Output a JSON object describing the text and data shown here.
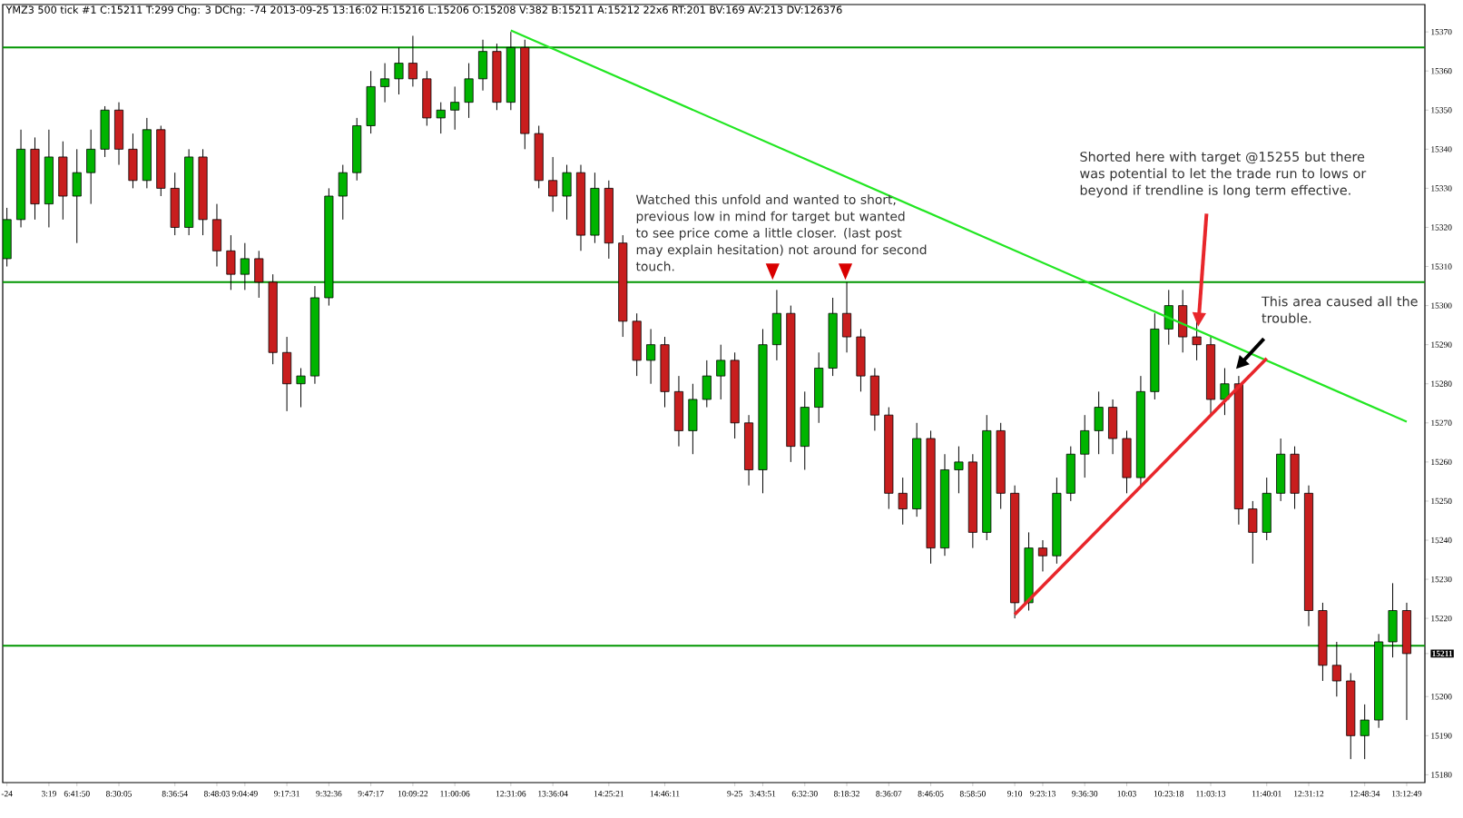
{
  "chart_data": {
    "type": "candlestick",
    "title": "YMZ3  500 tick  #1 C:15211 T:299 Chg: 3 DChg: -74 2013-09-25 13:16:02 H:15216 L:15206 O:15208 V:382 B:15211 A:15212 22x6 RT:201 BV:169 AV:213 DV:126376",
    "categories": [
      "-24",
      null,
      null,
      "3:19",
      null,
      "6:41:50",
      null,
      null,
      "8:30:05",
      null,
      null,
      null,
      "8:36:54",
      null,
      null,
      "8:48:03",
      null,
      "9:04:49",
      null,
      null,
      "9:17:31",
      null,
      null,
      "9:32:36",
      null,
      null,
      "9:47:17",
      null,
      null,
      "10:09:22",
      null,
      null,
      "11:00:06",
      null,
      null,
      null,
      "12:31:06",
      null,
      null,
      "13:36:04",
      null,
      null,
      null,
      "14:25:21",
      null,
      null,
      null,
      "14:46:11",
      null,
      null,
      null,
      null,
      "9-25",
      null,
      "3:43:51",
      null,
      null,
      "6:32:30",
      null,
      null,
      "8:18:32",
      null,
      null,
      "8:36:07",
      null,
      null,
      "8:46:05",
      null,
      null,
      "8:58:50",
      null,
      null,
      "9:10",
      null,
      "9:23:13",
      null,
      null,
      "9:36:30",
      null,
      null,
      "10:03",
      null,
      null,
      "10:23:18",
      null,
      null,
      "11:03:13",
      null,
      null,
      null,
      "11:40:01",
      null,
      null,
      "12:31:12",
      null,
      null,
      null,
      "12:48:34",
      null,
      null,
      "13:12:49"
    ],
    "ohlc": [
      [
        15312,
        15325,
        15310,
        15322
      ],
      [
        15322,
        15345,
        15320,
        15340
      ],
      [
        15340,
        15343,
        15322,
        15326
      ],
      [
        15326,
        15345,
        15320,
        15338
      ],
      [
        15338,
        15342,
        15322,
        15328
      ],
      [
        15328,
        15340,
        15316,
        15334
      ],
      [
        15334,
        15345,
        15326,
        15340
      ],
      [
        15340,
        15351,
        15338,
        15350
      ],
      [
        15350,
        15352,
        15336,
        15340
      ],
      [
        15340,
        15344,
        15330,
        15332
      ],
      [
        15332,
        15348,
        15330,
        15345
      ],
      [
        15345,
        15346,
        15328,
        15330
      ],
      [
        15330,
        15334,
        15318,
        15320
      ],
      [
        15320,
        15340,
        15318,
        15338
      ],
      [
        15338,
        15340,
        15318,
        15322
      ],
      [
        15322,
        15326,
        15310,
        15314
      ],
      [
        15314,
        15318,
        15304,
        15308
      ],
      [
        15308,
        15316,
        15304,
        15312
      ],
      [
        15312,
        15314,
        15302,
        15306
      ],
      [
        15306,
        15308,
        15285,
        15288
      ],
      [
        15288,
        15292,
        15273,
        15280
      ],
      [
        15280,
        15284,
        15274,
        15282
      ],
      [
        15282,
        15305,
        15280,
        15302
      ],
      [
        15302,
        15330,
        15300,
        15328
      ],
      [
        15328,
        15336,
        15322,
        15334
      ],
      [
        15334,
        15348,
        15332,
        15346
      ],
      [
        15346,
        15360,
        15344,
        15356
      ],
      [
        15356,
        15362,
        15352,
        15358
      ],
      [
        15358,
        15366,
        15354,
        15362
      ],
      [
        15362,
        15369,
        15356,
        15358
      ],
      [
        15358,
        15360,
        15346,
        15348
      ],
      [
        15348,
        15352,
        15344,
        15350
      ],
      [
        15350,
        15356,
        15345,
        15352
      ],
      [
        15352,
        15362,
        15348,
        15358
      ],
      [
        15358,
        15368,
        15355,
        15365
      ],
      [
        15365,
        15367,
        15350,
        15352
      ],
      [
        15352,
        15370,
        15350,
        15366
      ],
      [
        15366,
        15368,
        15340,
        15344
      ],
      [
        15344,
        15346,
        15330,
        15332
      ],
      [
        15332,
        15338,
        15324,
        15328
      ],
      [
        15328,
        15336,
        15322,
        15334
      ],
      [
        15334,
        15336,
        15314,
        15318
      ],
      [
        15318,
        15334,
        15316,
        15330
      ],
      [
        15330,
        15332,
        15312,
        15316
      ],
      [
        15316,
        15318,
        15292,
        15296
      ],
      [
        15296,
        15298,
        15282,
        15286
      ],
      [
        15286,
        15294,
        15280,
        15290
      ],
      [
        15290,
        15292,
        15274,
        15278
      ],
      [
        15278,
        15282,
        15264,
        15268
      ],
      [
        15268,
        15280,
        15262,
        15276
      ],
      [
        15276,
        15286,
        15274,
        15282
      ],
      [
        15282,
        15290,
        15276,
        15286
      ],
      [
        15286,
        15288,
        15266,
        15270
      ],
      [
        15270,
        15272,
        15254,
        15258
      ],
      [
        15258,
        15294,
        15252,
        15290
      ],
      [
        15290,
        15304,
        15286,
        15298
      ],
      [
        15298,
        15300,
        15260,
        15264
      ],
      [
        15264,
        15278,
        15258,
        15274
      ],
      [
        15274,
        15288,
        15270,
        15284
      ],
      [
        15284,
        15302,
        15282,
        15298
      ],
      [
        15298,
        15306,
        15288,
        15292
      ],
      [
        15292,
        15294,
        15278,
        15282
      ],
      [
        15282,
        15284,
        15268,
        15272
      ],
      [
        15272,
        15274,
        15248,
        15252
      ],
      [
        15252,
        15256,
        15244,
        15248
      ],
      [
        15248,
        15270,
        15246,
        15266
      ],
      [
        15266,
        15268,
        15234,
        15238
      ],
      [
        15238,
        15262,
        15236,
        15258
      ],
      [
        15258,
        15264,
        15252,
        15260
      ],
      [
        15260,
        15262,
        15238,
        15242
      ],
      [
        15242,
        15272,
        15240,
        15268
      ],
      [
        15268,
        15270,
        15248,
        15252
      ],
      [
        15252,
        15254,
        15220,
        15224
      ],
      [
        15224,
        15242,
        15222,
        15238
      ],
      [
        15238,
        15240,
        15232,
        15236
      ],
      [
        15236,
        15256,
        15234,
        15252
      ],
      [
        15252,
        15264,
        15250,
        15262
      ],
      [
        15262,
        15272,
        15256,
        15268
      ],
      [
        15268,
        15278,
        15262,
        15274
      ],
      [
        15274,
        15276,
        15262,
        15266
      ],
      [
        15266,
        15268,
        15252,
        15256
      ],
      [
        15256,
        15282,
        15254,
        15278
      ],
      [
        15278,
        15298,
        15276,
        15294
      ],
      [
        15294,
        15304,
        15290,
        15300
      ],
      [
        15300,
        15304,
        15288,
        15292
      ],
      [
        15292,
        15296,
        15286,
        15290
      ],
      [
        15290,
        15292,
        15272,
        15276
      ],
      [
        15276,
        15284,
        15272,
        15280
      ],
      [
        15280,
        15282,
        15244,
        15248
      ],
      [
        15248,
        15250,
        15234,
        15242
      ],
      [
        15242,
        15256,
        15240,
        15252
      ],
      [
        15252,
        15266,
        15250,
        15262
      ],
      [
        15262,
        15264,
        15248,
        15252
      ],
      [
        15252,
        15254,
        15218,
        15222
      ],
      [
        15222,
        15224,
        15204,
        15208
      ],
      [
        15208,
        15214,
        15200,
        15204
      ],
      [
        15204,
        15206,
        15184,
        15190
      ],
      [
        15190,
        15198,
        15184,
        15194
      ],
      [
        15194,
        15216,
        15192,
        15214
      ],
      [
        15214,
        15229,
        15210,
        15222
      ],
      [
        15222,
        15224,
        15194,
        15211
      ]
    ],
    "colors": [
      "#00b400",
      "#00b400",
      "#c81e1e",
      "#00b400",
      "#c81e1e",
      "#00b400",
      "#00b400",
      "#00b400",
      "#c81e1e",
      "#c81e1e",
      "#00b400",
      "#c81e1e",
      "#c81e1e",
      "#00b400",
      "#c81e1e",
      "#c81e1e",
      "#c81e1e",
      "#00b400",
      "#c81e1e",
      "#c81e1e",
      "#c81e1e",
      "#00b400",
      "#00b400",
      "#00b400",
      "#00b400",
      "#00b400",
      "#00b400",
      "#00b400",
      "#00b400",
      "#c81e1e",
      "#c81e1e",
      "#00b400",
      "#00b400",
      "#00b400",
      "#00b400",
      "#c81e1e",
      "#00b400",
      "#c81e1e",
      "#c81e1e",
      "#c81e1e",
      "#00b400",
      "#c81e1e",
      "#00b400",
      "#c81e1e",
      "#c81e1e",
      "#c81e1e",
      "#00b400",
      "#c81e1e",
      "#c81e1e",
      "#00b400",
      "#00b400",
      "#00b400",
      "#c81e1e",
      "#c81e1e",
      "#00b400",
      "#00b400",
      "#c81e1e",
      "#00b400",
      "#00b400",
      "#00b400",
      "#c81e1e",
      "#c81e1e",
      "#c81e1e",
      "#c81e1e",
      "#c81e1e",
      "#00b400",
      "#c81e1e",
      "#00b400",
      "#00b400",
      "#c81e1e",
      "#00b400",
      "#c81e1e",
      "#c81e1e",
      "#00b400",
      "#c81e1e",
      "#00b400",
      "#00b400",
      "#00b400",
      "#00b400",
      "#c81e1e",
      "#c81e1e",
      "#00b400",
      "#00b400",
      "#00b400",
      "#c81e1e",
      "#c81e1e",
      "#c81e1e",
      "#00b400",
      "#c81e1e",
      "#c81e1e",
      "#00b400",
      "#00b400",
      "#c81e1e",
      "#c81e1e",
      "#c81e1e",
      "#c81e1e",
      "#c81e1e",
      "#00b400",
      "#00b400",
      "#00b400",
      "#c81e1e"
    ],
    "series": [
      {
        "type": "line",
        "color": "#22e622",
        "values": [
          null,
          null,
          null,
          null,
          null,
          null,
          null,
          null,
          null,
          null,
          null,
          null,
          null,
          null,
          null,
          null,
          null,
          null,
          null,
          null,
          null,
          null,
          null,
          null,
          null,
          null,
          null,
          null,
          null,
          null,
          null,
          null,
          null,
          null,
          null,
          null,
          15370.4,
          null,
          null,
          null,
          null,
          null,
          null,
          null,
          null,
          null,
          null,
          null,
          null,
          null,
          null,
          null,
          null,
          null,
          null,
          null,
          null,
          null,
          null,
          null,
          null,
          null,
          null,
          null,
          null,
          null,
          null,
          null,
          null,
          null,
          null,
          null,
          null,
          null,
          null,
          null,
          null,
          null,
          null,
          null,
          null,
          null,
          null,
          null,
          null,
          null,
          null,
          null,
          null,
          null,
          null,
          null,
          null,
          null,
          null,
          null,
          null,
          null,
          null,
          null,
          15270.3
        ]
      },
      {
        "type": "line",
        "color": "#e8262b",
        "values": [
          null,
          null,
          null,
          null,
          null,
          null,
          null,
          null,
          null,
          null,
          null,
          null,
          null,
          null,
          null,
          null,
          null,
          null,
          null,
          null,
          null,
          null,
          null,
          null,
          null,
          null,
          null,
          null,
          null,
          null,
          null,
          null,
          null,
          null,
          null,
          null,
          null,
          null,
          null,
          null,
          null,
          null,
          null,
          null,
          null,
          null,
          null,
          null,
          null,
          null,
          null,
          null,
          null,
          null,
          null,
          null,
          null,
          null,
          null,
          null,
          null,
          null,
          null,
          null,
          null,
          null,
          null,
          null,
          null,
          null,
          null,
          null,
          15221,
          null,
          null,
          null,
          null,
          null,
          null,
          null,
          null,
          null,
          null,
          null,
          null,
          null,
          null,
          null,
          null,
          null,
          15286.5,
          null,
          null,
          null,
          null,
          null,
          null,
          null,
          null,
          null,
          null
        ]
      }
    ],
    "ref_lines": [
      {
        "axis": "y",
        "value": 15366,
        "color": "#009600"
      },
      {
        "axis": "y",
        "value": 15306,
        "color": "#009600"
      },
      {
        "axis": "y",
        "value": 15213,
        "color": "#009600"
      }
    ],
    "annotations": [
      "Watched this unfold and wanted to short, previous low in mind for target but wanted to see price come a little closer. (last post may explain hesitation) not around for second touch.",
      "Shorted here with target @15255 but there was potential to let the trade run to lows or beyond if trendline is long term effective.",
      "This area caused all the trouble."
    ],
    "ylim": [
      15178,
      15377
    ],
    "yticks": [
      15180,
      15190,
      15200,
      {
        "value": 15211,
        "label": "15211"
      },
      15220,
      15230,
      15240,
      15250,
      15260,
      15270,
      15280,
      15290,
      15300,
      15310,
      15320,
      15330,
      15340,
      15350,
      15360,
      15370
    ]
  }
}
